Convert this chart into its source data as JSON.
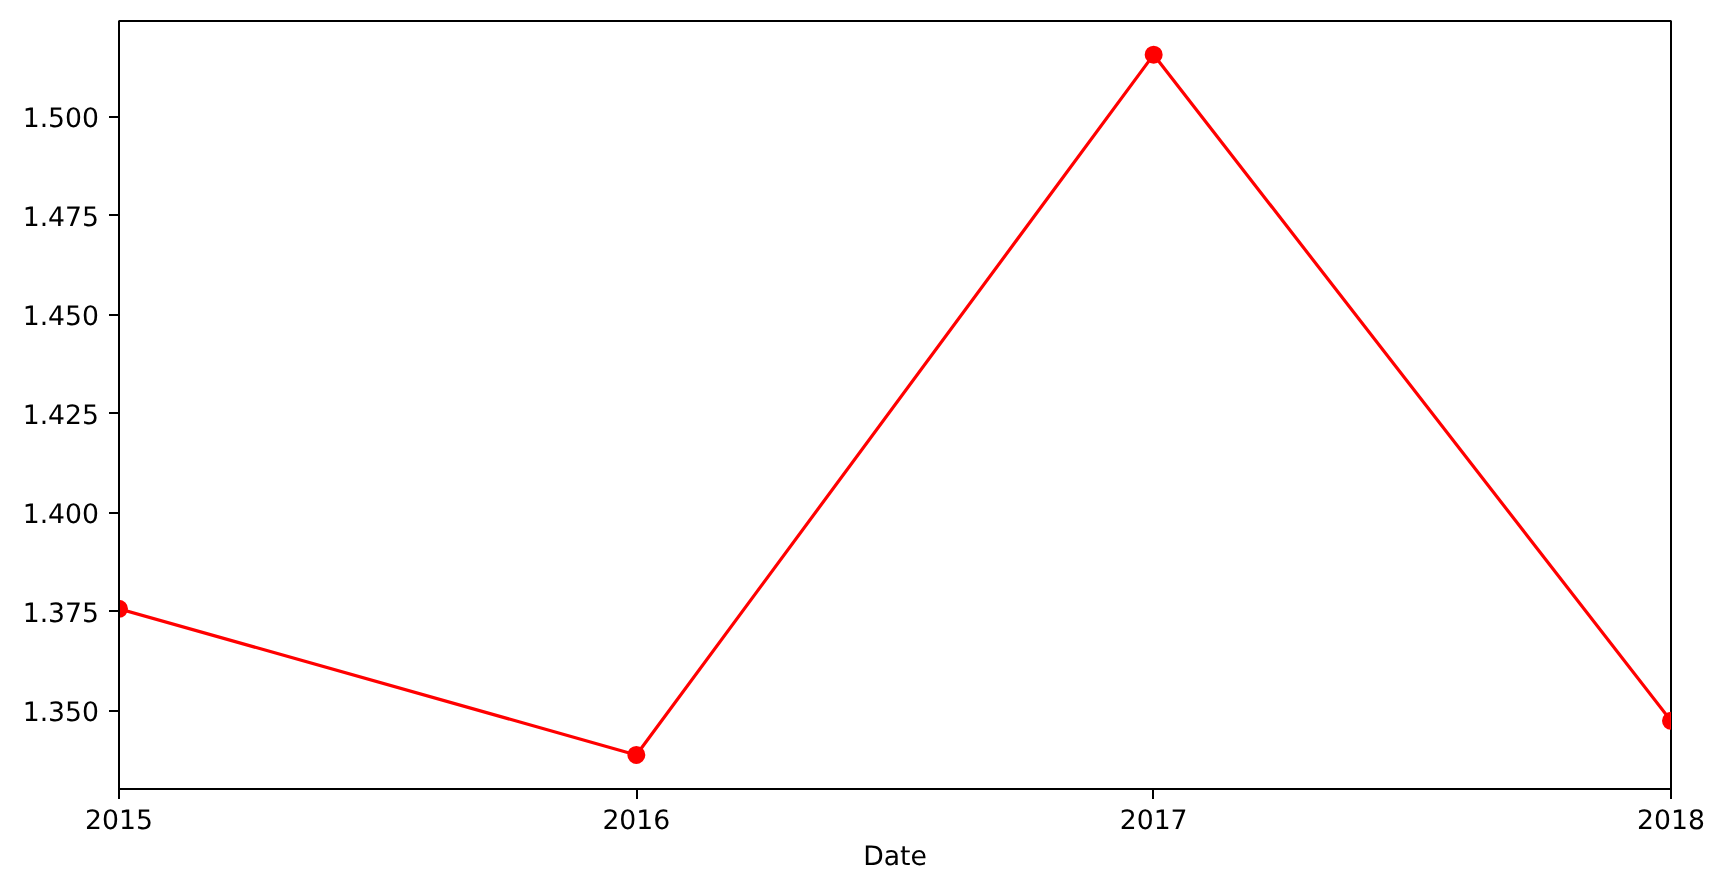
{
  "chart_data": {
    "type": "line",
    "xlabel": "Date",
    "x": [
      2015,
      2016,
      2017,
      2018
    ],
    "series": [
      {
        "color": "#ff0000",
        "values": [
          1.3758,
          1.3389,
          1.5157,
          1.3475
        ]
      }
    ],
    "xlim": [
      2015,
      2018
    ],
    "xticks": [
      2015,
      2016,
      2017,
      2018
    ],
    "ylim": [
      1.3303,
      1.5242
    ],
    "yticks": [
      {
        "value": 1.35,
        "label": "1.350"
      },
      {
        "value": 1.375,
        "label": "1.375"
      },
      {
        "value": 1.4,
        "label": "1.400"
      },
      {
        "value": 1.425,
        "label": "1.425"
      },
      {
        "value": 1.45,
        "label": "1.450"
      },
      {
        "value": 1.475,
        "label": "1.475"
      },
      {
        "value": 1.5,
        "label": "1.500"
      }
    ],
    "grid": false,
    "marker": "circle",
    "line_style": "solid"
  }
}
